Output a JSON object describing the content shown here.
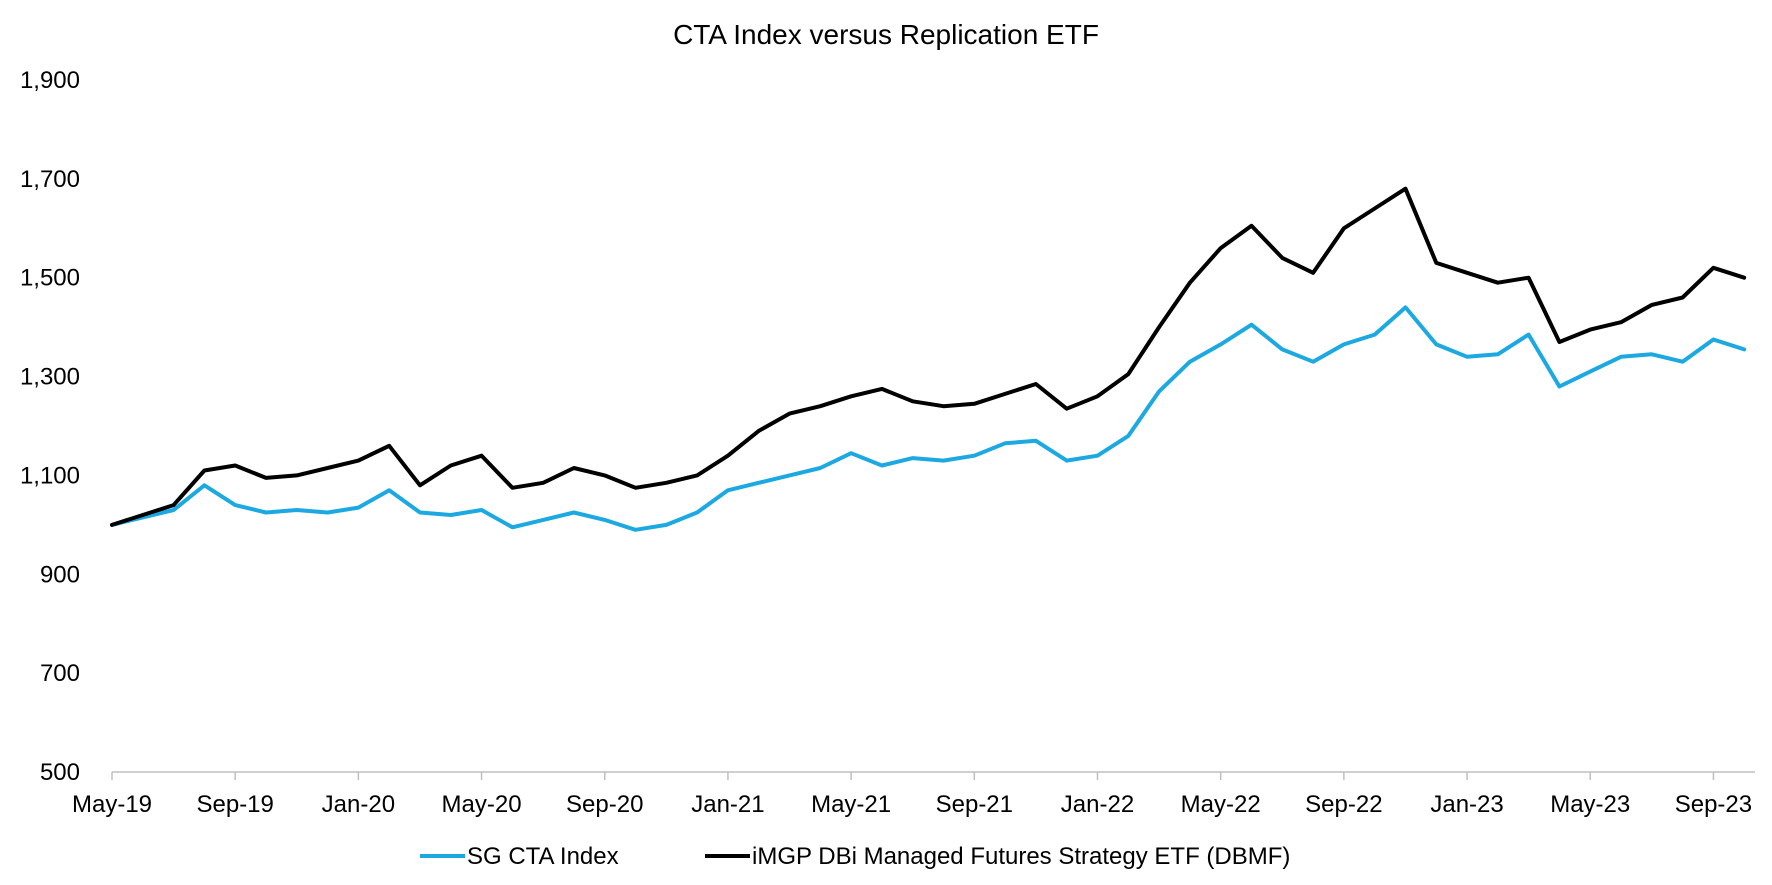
{
  "chart_data": {
    "type": "line",
    "title": "CTA Index versus Replication ETF",
    "xlabel": "",
    "ylabel": "",
    "ylim": [
      500,
      1900
    ],
    "yticks": [
      "500",
      "700",
      "900",
      "1,100",
      "1,300",
      "1,500",
      "1,700",
      "1,900"
    ],
    "ytick_values": [
      500,
      700,
      900,
      1100,
      1300,
      1500,
      1700,
      1900
    ],
    "xlim": [
      "2019-05",
      "2023-10"
    ],
    "xticks": [
      "May-19",
      "Sep-19",
      "Jan-20",
      "May-20",
      "Sep-20",
      "Jan-21",
      "May-21",
      "Sep-21",
      "Jan-22",
      "May-22",
      "Sep-22",
      "Jan-23",
      "May-23",
      "Sep-23"
    ],
    "xtick_dates": [
      "2019-05",
      "2019-09",
      "2020-01",
      "2020-05",
      "2020-09",
      "2021-01",
      "2021-05",
      "2021-09",
      "2022-01",
      "2022-05",
      "2022-09",
      "2023-01",
      "2023-05",
      "2023-09"
    ],
    "grid": false,
    "legend_position": "bottom",
    "series": [
      {
        "name": "SG CTA Index",
        "color": "#1CA9E1",
        "x": [
          "2019-05",
          "2019-06",
          "2019-07",
          "2019-08",
          "2019-09",
          "2019-10",
          "2019-11",
          "2019-12",
          "2020-01",
          "2020-02",
          "2020-03",
          "2020-04",
          "2020-05",
          "2020-06",
          "2020-07",
          "2020-08",
          "2020-09",
          "2020-10",
          "2020-11",
          "2020-12",
          "2021-01",
          "2021-02",
          "2021-03",
          "2021-04",
          "2021-05",
          "2021-06",
          "2021-07",
          "2021-08",
          "2021-09",
          "2021-10",
          "2021-11",
          "2021-12",
          "2022-01",
          "2022-02",
          "2022-03",
          "2022-04",
          "2022-05",
          "2022-06",
          "2022-07",
          "2022-08",
          "2022-09",
          "2022-10",
          "2022-11",
          "2022-12",
          "2023-01",
          "2023-02",
          "2023-03",
          "2023-04",
          "2023-05",
          "2023-06",
          "2023-07",
          "2023-08",
          "2023-09",
          "2023-10"
        ],
        "values": [
          1000,
          1015,
          1030,
          1080,
          1040,
          1025,
          1030,
          1025,
          1035,
          1070,
          1025,
          1020,
          1030,
          995,
          1010,
          1025,
          1010,
          990,
          1000,
          1025,
          1070,
          1085,
          1100,
          1115,
          1145,
          1120,
          1135,
          1130,
          1140,
          1165,
          1170,
          1130,
          1140,
          1180,
          1270,
          1330,
          1365,
          1405,
          1355,
          1330,
          1365,
          1385,
          1440,
          1365,
          1340,
          1345,
          1385,
          1280,
          1310,
          1340,
          1345,
          1330,
          1375,
          1355
        ]
      },
      {
        "name": "iMGP DBi Managed Futures Strategy ETF (DBMF)",
        "color": "#000000",
        "x": [
          "2019-05",
          "2019-06",
          "2019-07",
          "2019-08",
          "2019-09",
          "2019-10",
          "2019-11",
          "2019-12",
          "2020-01",
          "2020-02",
          "2020-03",
          "2020-04",
          "2020-05",
          "2020-06",
          "2020-07",
          "2020-08",
          "2020-09",
          "2020-10",
          "2020-11",
          "2020-12",
          "2021-01",
          "2021-02",
          "2021-03",
          "2021-04",
          "2021-05",
          "2021-06",
          "2021-07",
          "2021-08",
          "2021-09",
          "2021-10",
          "2021-11",
          "2021-12",
          "2022-01",
          "2022-02",
          "2022-03",
          "2022-04",
          "2022-05",
          "2022-06",
          "2022-07",
          "2022-08",
          "2022-09",
          "2022-10",
          "2022-11",
          "2022-12",
          "2023-01",
          "2023-02",
          "2023-03",
          "2023-04",
          "2023-05",
          "2023-06",
          "2023-07",
          "2023-08",
          "2023-09",
          "2023-10"
        ],
        "values": [
          1000,
          1020,
          1040,
          1110,
          1120,
          1095,
          1100,
          1115,
          1130,
          1160,
          1080,
          1120,
          1140,
          1075,
          1085,
          1115,
          1100,
          1075,
          1085,
          1100,
          1140,
          1190,
          1225,
          1240,
          1260,
          1275,
          1250,
          1240,
          1245,
          1265,
          1285,
          1235,
          1260,
          1305,
          1400,
          1490,
          1560,
          1605,
          1540,
          1510,
          1600,
          1640,
          1680,
          1530,
          1510,
          1490,
          1500,
          1370,
          1395,
          1410,
          1445,
          1460,
          1520,
          1500
        ]
      }
    ]
  }
}
